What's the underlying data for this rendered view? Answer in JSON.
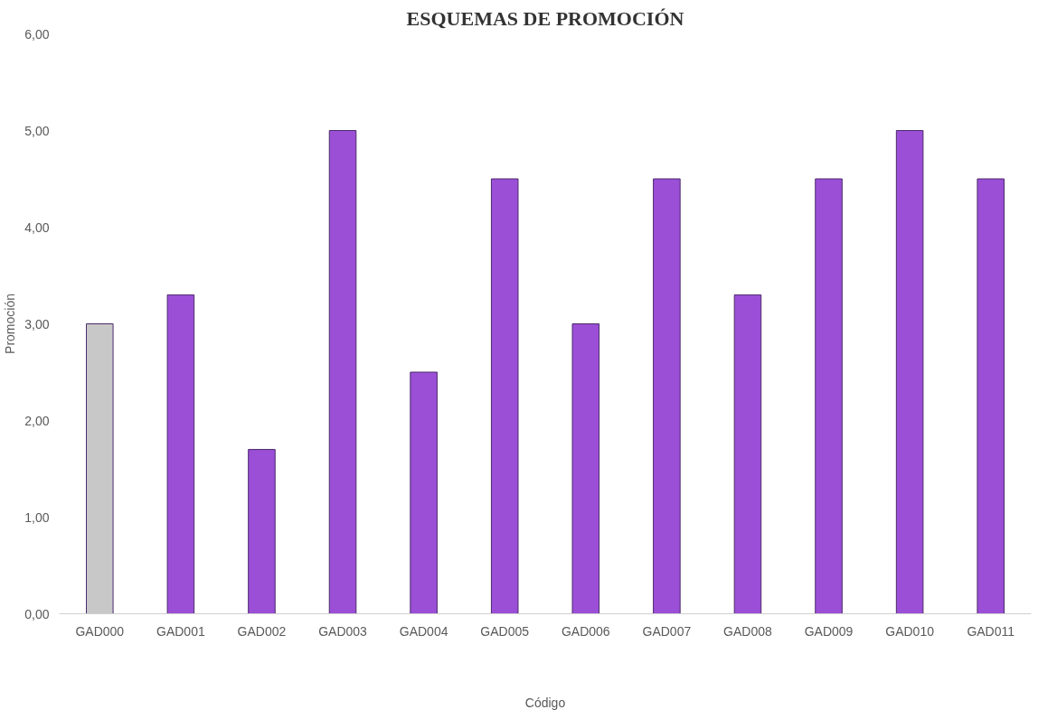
{
  "chart_data": {
    "type": "bar",
    "title": "ESQUEMAS DE PROMOCIÓN",
    "xlabel": "Código",
    "ylabel": "Promoción",
    "categories": [
      "GAD000",
      "GAD001",
      "GAD002",
      "GAD003",
      "GAD004",
      "GAD005",
      "GAD006",
      "GAD007",
      "GAD008",
      "GAD009",
      "GAD010",
      "GAD011"
    ],
    "values": [
      3.0,
      3.3,
      1.7,
      5.0,
      2.5,
      4.5,
      3.0,
      4.5,
      3.3,
      4.5,
      5.0,
      4.5
    ],
    "colors": [
      "#c8c8c8",
      "#9b4fd6",
      "#9b4fd6",
      "#9b4fd6",
      "#9b4fd6",
      "#9b4fd6",
      "#9b4fd6",
      "#9b4fd6",
      "#9b4fd6",
      "#9b4fd6",
      "#9b4fd6",
      "#9b4fd6"
    ],
    "ylim": [
      0,
      6
    ],
    "yticks": [
      {
        "value": 0,
        "label": "0,00"
      },
      {
        "value": 1,
        "label": "1,00"
      },
      {
        "value": 2,
        "label": "2,00"
      },
      {
        "value": 3,
        "label": "3,00"
      },
      {
        "value": 4,
        "label": "4,00"
      },
      {
        "value": 5,
        "label": "5,00"
      },
      {
        "value": 6,
        "label": "6,00"
      }
    ],
    "grid": false
  }
}
